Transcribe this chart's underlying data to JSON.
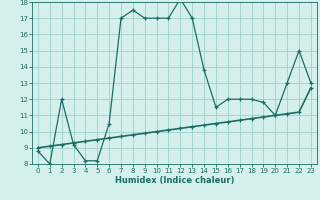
{
  "xlabel": "Humidex (Indice chaleur)",
  "x_values": [
    0,
    1,
    2,
    3,
    4,
    5,
    6,
    7,
    8,
    9,
    10,
    11,
    12,
    13,
    14,
    15,
    16,
    17,
    18,
    19,
    20,
    21,
    22,
    23
  ],
  "line1_y": [
    8.8,
    8.0,
    12.0,
    9.2,
    8.2,
    8.2,
    10.5,
    17.0,
    17.5,
    17.0,
    17.0,
    17.0,
    18.2,
    17.0,
    13.8,
    11.5,
    12.0,
    12.0,
    12.0,
    11.8,
    11.0,
    13.0,
    15.0,
    13.0
  ],
  "line2_y": [
    9.0,
    9.1,
    9.2,
    9.3,
    9.4,
    9.5,
    9.6,
    9.7,
    9.8,
    9.9,
    10.0,
    10.1,
    10.2,
    10.3,
    10.4,
    10.5,
    10.6,
    10.7,
    10.8,
    10.9,
    11.0,
    11.1,
    11.2,
    12.7
  ],
  "line_color": "#1a6e64",
  "bg_color": "#d5f0ec",
  "grid_color": "#9ed0ca",
  "ylim": [
    8,
    18
  ],
  "xlim_min": -0.5,
  "xlim_max": 23.5,
  "yticks": [
    8,
    9,
    10,
    11,
    12,
    13,
    14,
    15,
    16,
    17,
    18
  ],
  "xticks": [
    0,
    1,
    2,
    3,
    4,
    5,
    6,
    7,
    8,
    9,
    10,
    11,
    12,
    13,
    14,
    15,
    16,
    17,
    18,
    19,
    20,
    21,
    22,
    23
  ],
  "xlabel_fontsize": 6.0,
  "tick_fontsize": 5.0,
  "linewidth": 0.9,
  "markersize": 3.5
}
